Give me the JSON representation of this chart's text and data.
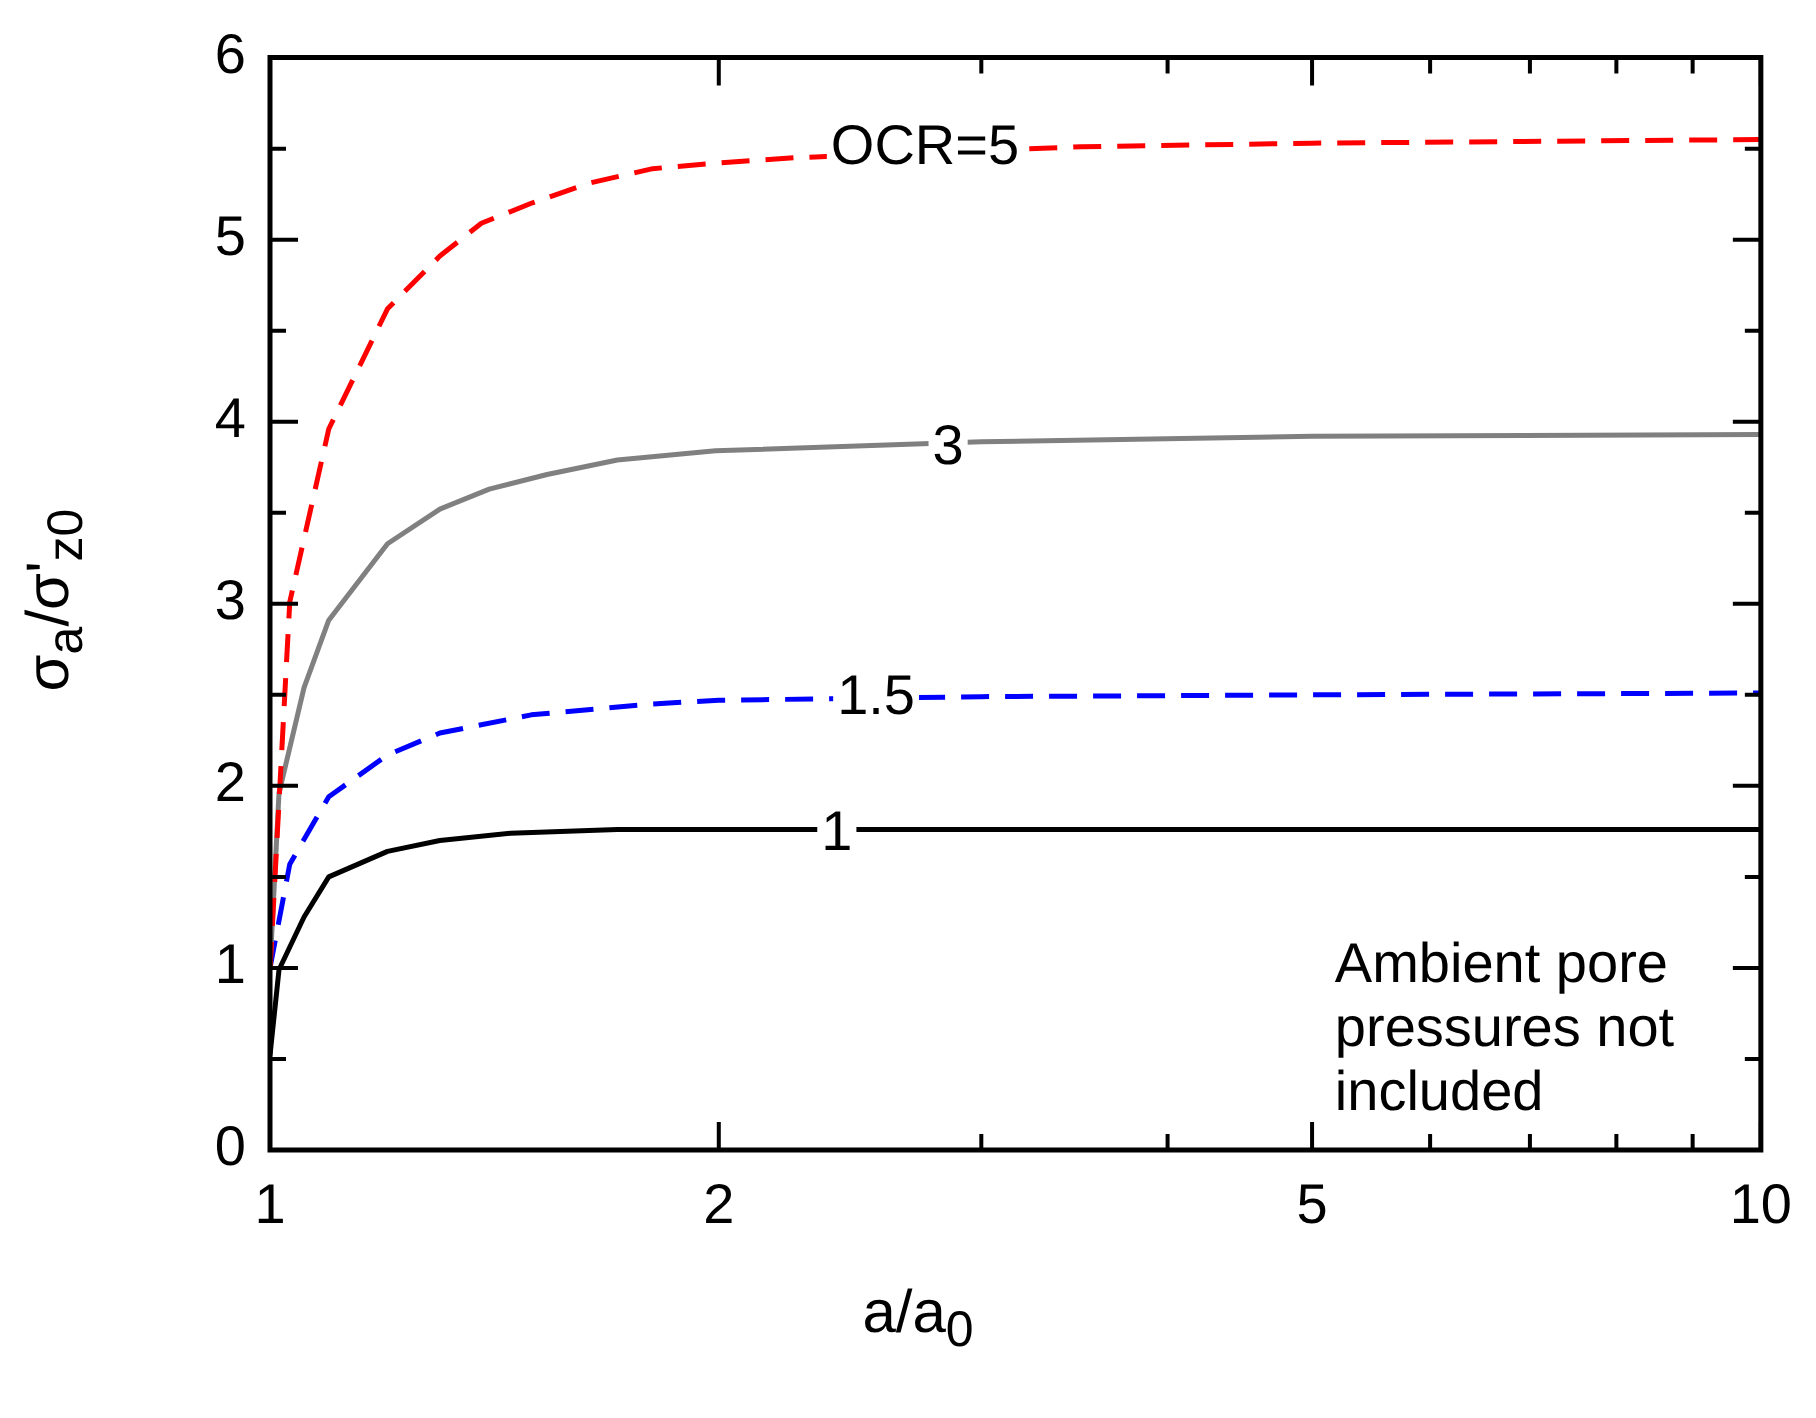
{
  "chart_data": {
    "type": "line",
    "xlabel": "a/a$_{0}$",
    "ylabel": "σ$_{a}$/σ'$_{z0}$",
    "log": "x",
    "xlim": [
      1,
      10
    ],
    "xticks": [
      1,
      2,
      {
        "value": 3,
        "label": null
      },
      {
        "value": 4,
        "label": null
      },
      5,
      {
        "value": 6,
        "label": null
      },
      {
        "value": 7,
        "label": null
      },
      {
        "value": 8,
        "label": null
      },
      {
        "value": 9,
        "label": null
      },
      10
    ],
    "ylim": [
      0,
      6
    ],
    "yticks": [
      0,
      {
        "value": 0.5,
        "label": null
      },
      1,
      {
        "value": 1.5,
        "label": null
      },
      2,
      {
        "value": 2.5,
        "label": null
      },
      3,
      {
        "value": 3.5,
        "label": null
      },
      4,
      {
        "value": 4.5,
        "label": null
      },
      5,
      {
        "value": 5.5,
        "label": null
      },
      6
    ],
    "grid": false,
    "legend": false,
    "marker": "none",
    "series": [
      {
        "color": "#ff0000",
        "line_style": "dashed",
        "x": [
          1,
          1.031,
          1.095,
          1.199,
          1.3,
          1.386,
          1.497,
          1.636,
          1.806,
          1.99,
          2.25,
          3.5,
          5,
          10
        ],
        "values": [
          0.99,
          3.01,
          3.96,
          4.62,
          4.91,
          5.09,
          5.2,
          5.31,
          5.39,
          5.42,
          5.45,
          5.51,
          5.53,
          5.55
        ]
      },
      {
        "color": "#808080",
        "line_style": "solid",
        "x": [
          1,
          1.014,
          1.054,
          1.095,
          1.199,
          1.3,
          1.403,
          1.534,
          1.71,
          1.99,
          3,
          5,
          10
        ],
        "values": [
          1,
          1.96,
          2.54,
          2.91,
          3.33,
          3.52,
          3.63,
          3.71,
          3.79,
          3.84,
          3.89,
          3.92,
          3.93
        ]
      },
      {
        "color": "#0000ff",
        "line_style": "dashed",
        "x": [
          1,
          1.031,
          1.095,
          1.199,
          1.3,
          1.497,
          1.806,
          2,
          3,
          5,
          10
        ],
        "values": [
          1,
          1.57,
          1.94,
          2.17,
          2.29,
          2.39,
          2.45,
          2.47,
          2.49,
          2.5,
          2.51
        ]
      },
      {
        "color": "#000000",
        "line_style": "solid",
        "x": [
          1,
          1.014,
          1.054,
          1.095,
          1.199,
          1.3,
          1.45,
          1.71,
          2,
          5,
          10
        ],
        "values": [
          0.52,
          0.99,
          1.28,
          1.5,
          1.64,
          1.7,
          1.74,
          1.76,
          1.76,
          1.76,
          1.76
        ]
      }
    ],
    "annotations": [
      {
        "text": "OCR=5",
        "x": 2.75,
        "y": 5.5
      },
      {
        "text": "3",
        "x": 2.85,
        "y": 3.85
      },
      {
        "text": "1.5",
        "x": 2.55,
        "y": 2.48
      },
      {
        "text": "1",
        "x": 2.4,
        "y": 1.73
      },
      "Ambient pore pressures not included"
    ]
  }
}
